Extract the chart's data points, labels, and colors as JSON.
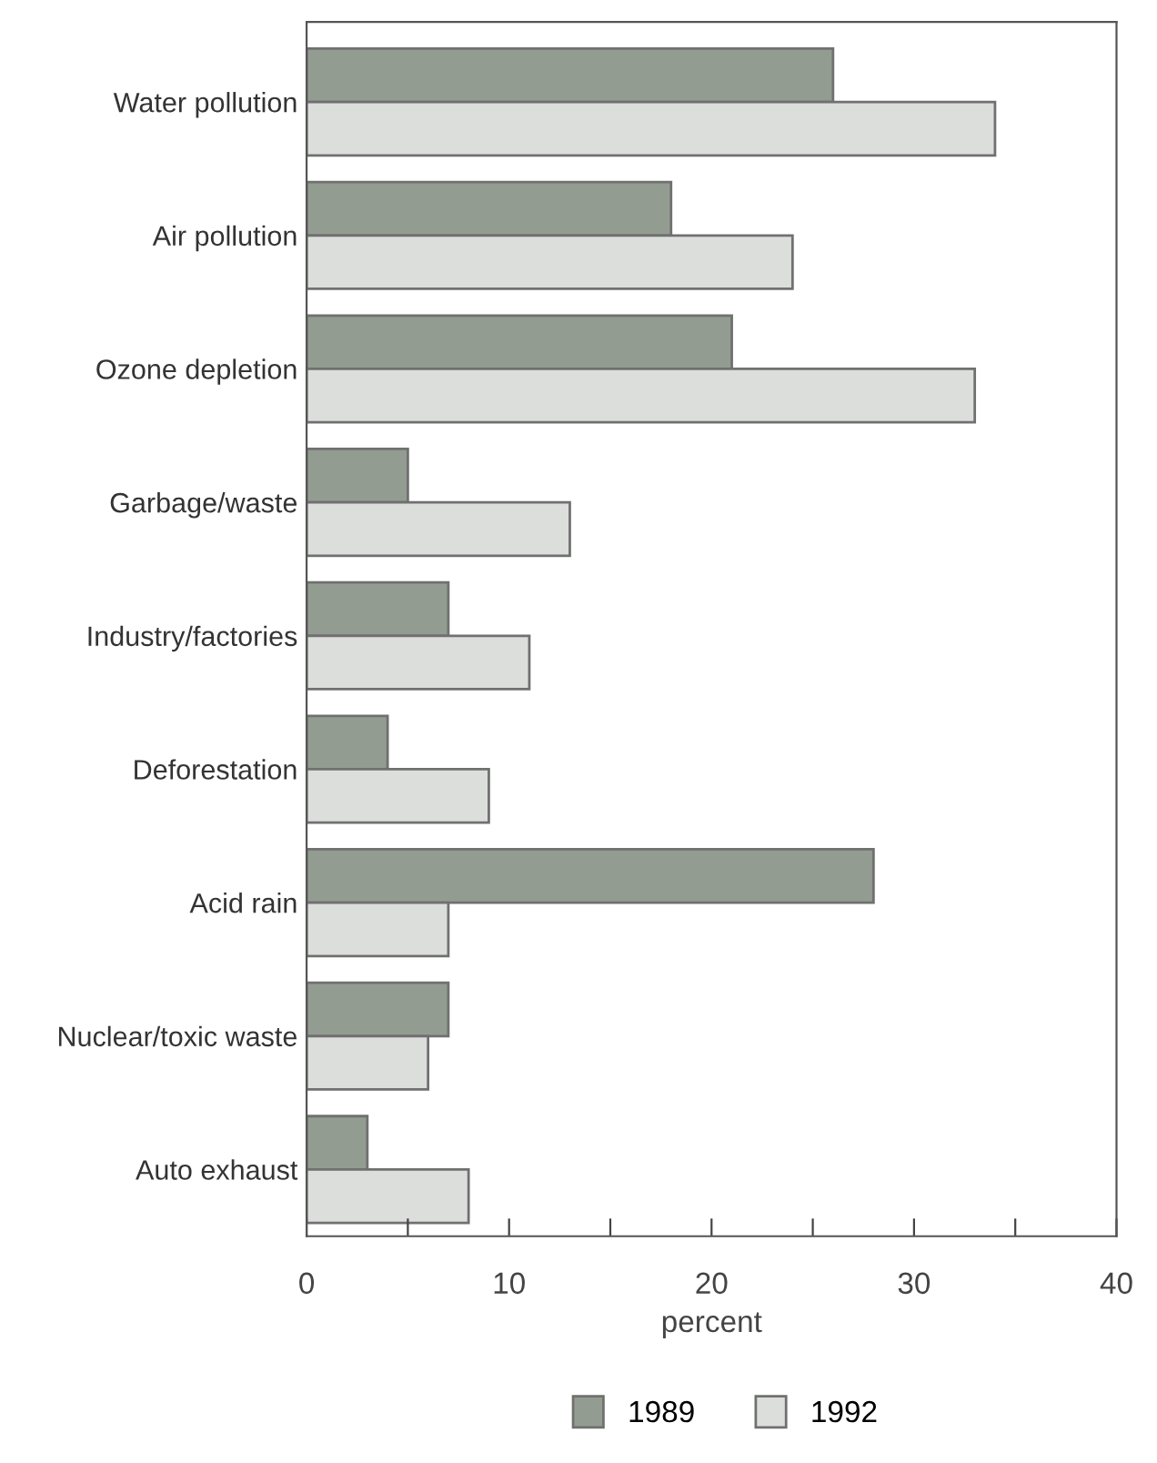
{
  "chart_data": {
    "type": "bar",
    "orientation": "horizontal",
    "xlabel": "percent",
    "categories": [
      "Water pollution",
      "Air pollution",
      "Ozone depletion",
      "Garbage/waste",
      "Industry/factories",
      "Deforestation",
      "Acid rain",
      "Nuclear/toxic waste",
      "Auto exhaust"
    ],
    "series": [
      {
        "name": "1989",
        "color": "#939c90",
        "values": [
          26,
          18,
          21,
          5,
          7,
          4,
          28,
          7,
          3
        ]
      },
      {
        "name": "1992",
        "color": "#dcdedb",
        "values": [
          34,
          24,
          33,
          13,
          11,
          9,
          7,
          6,
          8
        ]
      }
    ],
    "xlim": [
      0,
      40
    ],
    "xticks": [
      0,
      {
        "value": 5,
        "label": null
      },
      10,
      {
        "value": 15,
        "label": null
      },
      20,
      {
        "value": 25,
        "label": null
      },
      30,
      {
        "value": 35,
        "label": null
      },
      40
    ],
    "grid": false,
    "legend": "bottom"
  }
}
